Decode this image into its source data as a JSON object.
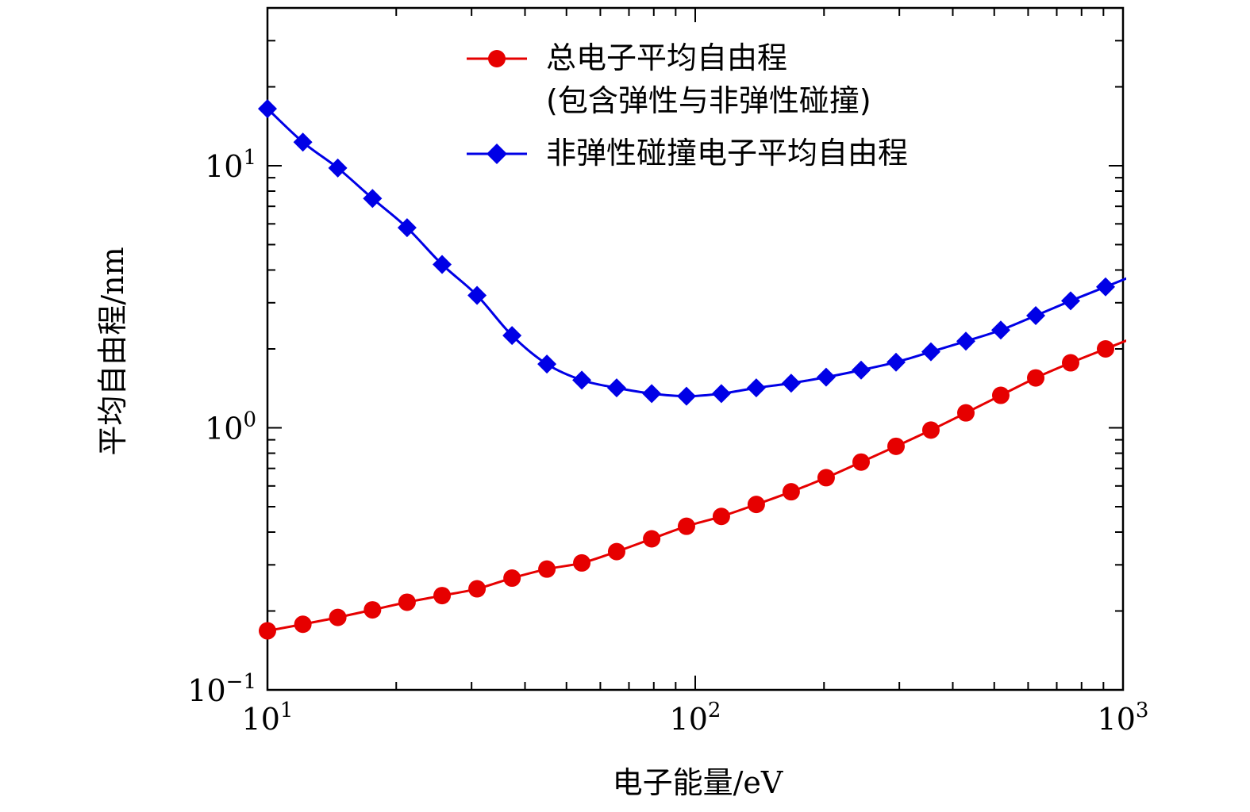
{
  "chart_data": {
    "type": "line",
    "xscale": "log",
    "yscale": "log",
    "xlim": [
      10,
      1000
    ],
    "ylim": [
      0.1,
      40
    ],
    "xlabel": "电子能量/eV",
    "ylabel": "平均自由程/nm",
    "x_ticks": [
      {
        "base": "10",
        "exp": "1",
        "value": 10
      },
      {
        "base": "10",
        "exp": "2",
        "value": 100
      },
      {
        "base": "10",
        "exp": "3",
        "value": 1000
      }
    ],
    "y_ticks": [
      {
        "base": "10",
        "exp": "−1",
        "value": 0.1
      },
      {
        "base": "10",
        "exp": "0",
        "value": 1
      },
      {
        "base": "10",
        "exp": "1",
        "value": 10
      }
    ],
    "legend_position": "top-right",
    "series": [
      {
        "name": "总电子平均自由程",
        "name_line2": "(包含弹性与非弹性碰撞)",
        "color": "#e60000",
        "marker": "circle",
        "x": [
          10.0,
          12.1,
          14.6,
          17.6,
          21.2,
          25.6,
          30.9,
          37.3,
          45.0,
          54.3,
          65.5,
          79.1,
          95.4,
          115.1,
          138.9,
          167.6,
          202.3,
          244.2,
          294.7,
          355.6,
          429.2,
          517.9,
          625.1,
          754.3,
          910.3
        ],
        "values": [
          0.168,
          0.178,
          0.189,
          0.202,
          0.216,
          0.229,
          0.243,
          0.267,
          0.289,
          0.305,
          0.337,
          0.377,
          0.421,
          0.459,
          0.51,
          0.57,
          0.645,
          0.74,
          0.85,
          0.98,
          1.14,
          1.33,
          1.55,
          1.77,
          2.0
        ]
      },
      {
        "name": "非弹性碰撞电子平均自由程",
        "color": "#0000e6",
        "marker": "diamond",
        "x": [
          10.0,
          12.1,
          14.6,
          17.6,
          21.2,
          25.6,
          30.9,
          37.3,
          45.0,
          54.3,
          65.5,
          79.1,
          95.4,
          115.1,
          138.9,
          167.6,
          202.3,
          244.2,
          294.7,
          355.6,
          429.2,
          517.9,
          625.1,
          754.3,
          910.3
        ],
        "values": [
          16.5,
          12.3,
          9.8,
          7.5,
          5.8,
          4.2,
          3.2,
          2.25,
          1.75,
          1.52,
          1.42,
          1.35,
          1.32,
          1.35,
          1.42,
          1.48,
          1.56,
          1.66,
          1.78,
          1.95,
          2.14,
          2.36,
          2.68,
          3.05,
          3.45
        ]
      }
    ]
  }
}
